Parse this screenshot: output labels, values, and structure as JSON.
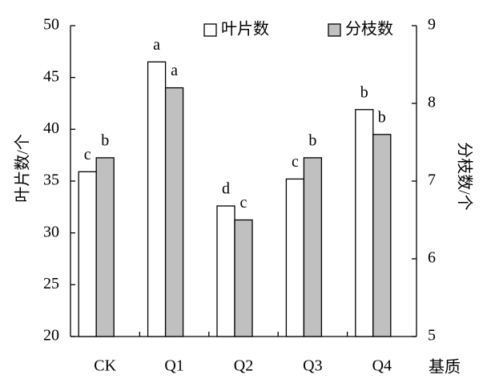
{
  "chart_data": {
    "type": "bar",
    "categories": [
      "CK",
      "Q1",
      "Q2",
      "Q3",
      "Q4"
    ],
    "x_label": "基质",
    "y_label": "叶片数/个",
    "y2_label": "分枝数/个",
    "ylim": [
      20,
      50
    ],
    "yticks": [
      20,
      25,
      30,
      35,
      40,
      45,
      50
    ],
    "y2lim": [
      5,
      9
    ],
    "y2ticks": [
      5,
      6,
      7,
      8,
      9
    ],
    "series": [
      {
        "name": "叶片数",
        "color": "#ffffff",
        "values": [
          35.9,
          46.5,
          32.6,
          35.2,
          41.9
        ],
        "letters": [
          "c",
          "a",
          "d",
          "c",
          "b"
        ]
      },
      {
        "name": "分枝数",
        "color": "#c0c0c0",
        "axis": "y2",
        "values": [
          7.3,
          8.2,
          6.5,
          7.3,
          7.6
        ],
        "letters": [
          "b",
          "a",
          "c",
          "b",
          "b"
        ]
      }
    ]
  }
}
